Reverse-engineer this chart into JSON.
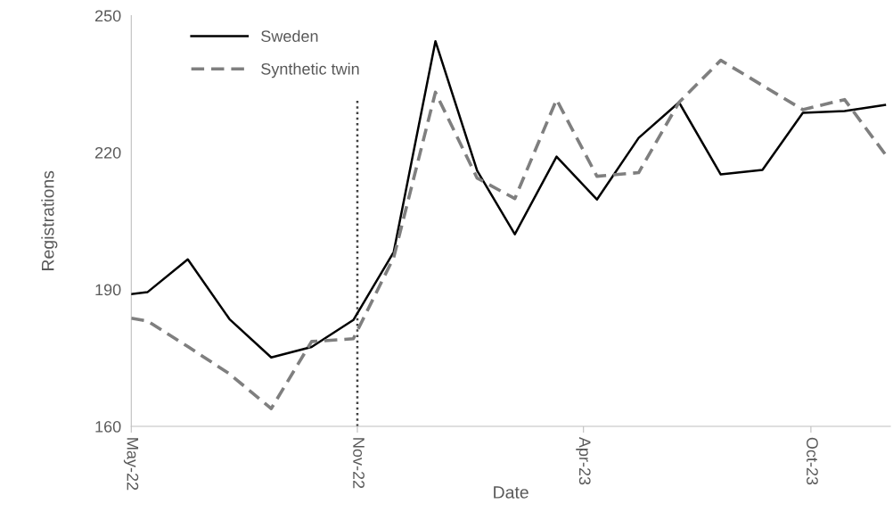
{
  "chart_data": {
    "type": "line",
    "xlabel": "Date",
    "ylabel": "Registrations",
    "x": [
      "2022-05-20",
      "2022-06-01",
      "2022-07-01",
      "2022-08-01",
      "2022-09-01",
      "2022-10-01",
      "2022-11-01",
      "2022-12-01",
      "2023-01-01",
      "2023-02-01",
      "2023-03-01",
      "2023-04-01",
      "2023-05-01",
      "2023-06-01",
      "2023-07-01",
      "2023-08-01",
      "2023-09-01",
      "2023-10-01",
      "2023-11-01",
      "2023-12-01"
    ],
    "series": [
      {
        "name": "Sweden",
        "color": "#000000",
        "line_style": "solid",
        "values": [
          189.0,
          189.4,
          196.6,
          183.5,
          175.1,
          177.4,
          183.3,
          198.2,
          244.4,
          216.0,
          202.1,
          219.1,
          209.7,
          223.2,
          231.0,
          215.2,
          216.2,
          228.7,
          229.1,
          230.4
        ]
      },
      {
        "name": "Synthetic twin",
        "color": "#7f7f7f",
        "line_style": "dashed",
        "values": [
          183.7,
          183.1,
          177.5,
          171.5,
          163.9,
          178.6,
          179.2,
          197.0,
          233.2,
          214.4,
          209.9,
          231.6,
          214.8,
          215.6,
          231.0,
          240.2,
          234.7,
          229.4,
          231.6,
          219.7
        ]
      }
    ],
    "xlim": [
      "2022-05-20",
      "2023-12-05"
    ],
    "xticks": [
      {
        "value": "2022-05-20",
        "label": "May-22"
      },
      {
        "value": "2022-11-04",
        "label": "Nov-22"
      },
      {
        "value": "2023-04-21",
        "label": "Apr-23"
      },
      {
        "value": "2023-10-07",
        "label": "Oct-23"
      }
    ],
    "ylim": [
      160,
      250
    ],
    "yticks": [
      160,
      190,
      220,
      250
    ],
    "ref_lines": [
      {
        "axis": "x",
        "value": "2022-11-04",
        "color": "#404040",
        "line_style": "dotted"
      }
    ],
    "grid": false,
    "legend": "top left",
    "marker": "none"
  }
}
